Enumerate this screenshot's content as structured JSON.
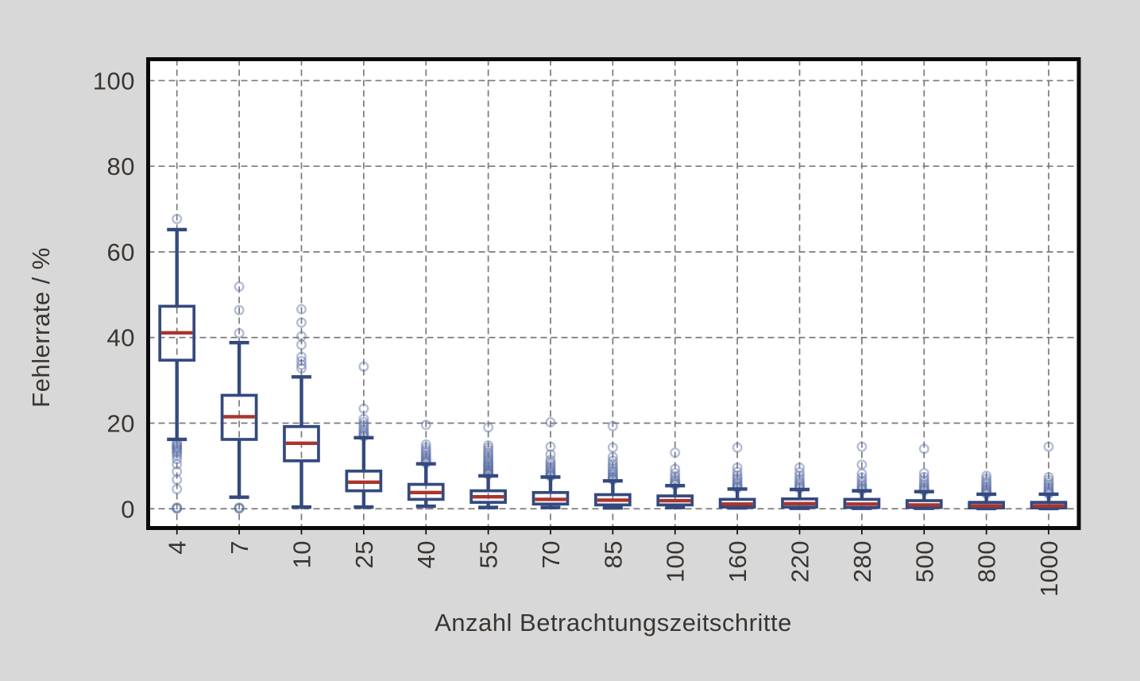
{
  "chart_data": {
    "type": "boxplot",
    "xlabel": "Anzahl Betrachtungszeitschritte",
    "ylabel": "Fehlerrate / %",
    "categories": [
      "4",
      "7",
      "10",
      "25",
      "40",
      "55",
      "70",
      "85",
      "100",
      "160",
      "220",
      "280",
      "500",
      "800",
      "1000"
    ],
    "y_ticks": [
      0,
      20,
      40,
      60,
      80,
      100
    ],
    "ylim": [
      -4.5,
      105
    ],
    "grid": true,
    "legend_position": "none",
    "boxes": [
      {
        "label": "4",
        "whislo": 16.2,
        "q1": 34.7,
        "med": 41.1,
        "q3": 47.3,
        "whishi": 65.2,
        "fliers": [
          67.7,
          15.4,
          15.0,
          14.7,
          14.4,
          14.1,
          13.8,
          13.4,
          13.0,
          12.4,
          11.6,
          10.4,
          8.7,
          6.8,
          4.6,
          0.3,
          0.15,
          0.05
        ]
      },
      {
        "label": "7",
        "whislo": 2.7,
        "q1": 16.2,
        "med": 21.5,
        "q3": 26.5,
        "whishi": 38.8,
        "fliers": [
          51.9,
          46.4,
          41.0,
          0.3,
          0.15,
          0.05
        ]
      },
      {
        "label": "10",
        "whislo": 0.4,
        "q1": 11.2,
        "med": 15.3,
        "q3": 19.2,
        "whishi": 30.8,
        "fliers": [
          46.6,
          43.5,
          40.3,
          38.3,
          35.5,
          34.5,
          33.6,
          32.8
        ]
      },
      {
        "label": "25",
        "whislo": 0.4,
        "q1": 4.2,
        "med": 6.2,
        "q3": 8.8,
        "whishi": 16.6,
        "fliers": [
          33.2,
          23.4,
          21.0,
          20.2,
          19.6,
          19.0,
          18.5,
          18.0,
          17.6,
          17.2,
          16.9
        ]
      },
      {
        "label": "40",
        "whislo": 0.6,
        "q1": 2.2,
        "med": 3.8,
        "q3": 5.7,
        "whishi": 10.5,
        "fliers": [
          19.6,
          15.0,
          14.3,
          13.7,
          13.2,
          12.7,
          12.3,
          11.9,
          11.5,
          11.2,
          10.9,
          10.7
        ]
      },
      {
        "label": "55",
        "whislo": 0.3,
        "q1": 1.5,
        "med": 2.8,
        "q3": 4.2,
        "whishi": 7.7,
        "fliers": [
          19.0,
          14.8,
          14.2,
          13.6,
          13.0,
          12.5,
          12.0,
          11.6,
          11.2,
          10.8,
          10.5,
          10.2,
          9.9,
          9.6,
          9.3,
          9.0,
          8.8,
          8.6,
          8.4,
          8.2,
          8.0
        ]
      },
      {
        "label": "70",
        "whislo": 0.3,
        "q1": 1.1,
        "med": 2.2,
        "q3": 3.8,
        "whishi": 7.4,
        "fliers": [
          20.2,
          14.5,
          12.7,
          11.4,
          10.8,
          10.3,
          9.8,
          9.4,
          9.0,
          8.6,
          8.3,
          8.0,
          7.8,
          7.6
        ]
      },
      {
        "label": "85",
        "whislo": 0.2,
        "q1": 0.9,
        "med": 2.0,
        "q3": 3.3,
        "whishi": 6.5,
        "fliers": [
          19.3,
          14.3,
          12.1,
          11.2,
          10.5,
          9.9,
          9.3,
          8.8,
          8.4,
          8.0,
          7.6,
          7.3,
          7.0,
          6.8
        ]
      },
      {
        "label": "100",
        "whislo": 0.3,
        "q1": 0.9,
        "med": 1.9,
        "q3": 3.0,
        "whishi": 5.4,
        "fliers": [
          13.1,
          9.3,
          8.3,
          7.6,
          7.0,
          6.5,
          6.1,
          5.8,
          5.6
        ]
      },
      {
        "label": "160",
        "whislo": 0.2,
        "q1": 0.4,
        "med": 1.1,
        "q3": 2.2,
        "whishi": 4.6,
        "fliers": [
          14.3,
          9.6,
          8.6,
          7.8,
          7.2,
          6.7,
          6.2,
          5.8,
          5.4,
          5.1,
          4.9
        ]
      },
      {
        "label": "220",
        "whislo": 0.1,
        "q1": 0.4,
        "med": 1.2,
        "q3": 2.3,
        "whishi": 4.5,
        "fliers": [
          9.6,
          8.5,
          7.7,
          7.0,
          6.4,
          5.9,
          5.5,
          5.1,
          4.8
        ]
      },
      {
        "label": "280",
        "whislo": 0.1,
        "q1": 0.3,
        "med": 1.1,
        "q3": 2.2,
        "whishi": 4.2,
        "fliers": [
          14.5,
          10.3,
          8.2,
          7.3,
          6.6,
          6.0,
          5.5,
          5.1,
          4.7,
          4.4
        ]
      },
      {
        "label": "500",
        "whislo": 0.1,
        "q1": 0.3,
        "med": 0.9,
        "q3": 1.9,
        "whishi": 4.0,
        "fliers": [
          14.0,
          8.3,
          7.4,
          6.7,
          6.1,
          5.6,
          5.2,
          4.8,
          4.5,
          4.2
        ]
      },
      {
        "label": "800",
        "whislo": 0.05,
        "q1": 0.2,
        "med": 0.7,
        "q3": 1.5,
        "whishi": 3.4,
        "fliers": [
          7.7,
          7.0,
          6.4,
          5.9,
          5.4,
          5.0,
          4.6,
          4.3,
          4.0,
          3.7,
          3.5
        ]
      },
      {
        "label": "1000",
        "whislo": 0.05,
        "q1": 0.2,
        "med": 0.7,
        "q3": 1.5,
        "whishi": 3.4,
        "fliers": [
          14.5,
          7.4,
          6.7,
          6.1,
          5.6,
          5.1,
          4.7,
          4.3,
          4.0,
          3.7,
          3.5
        ]
      }
    ],
    "colors": {
      "box": "#34497e",
      "median": "#ab342c",
      "flier": "#5a6fa8",
      "flier_opacity": 0.45,
      "grid": "#7a7a7a",
      "frame": "#0b0b0b",
      "text": "#3a3531",
      "plot_bg": "#ffffff",
      "page_bg": "#d8d8d8"
    }
  }
}
